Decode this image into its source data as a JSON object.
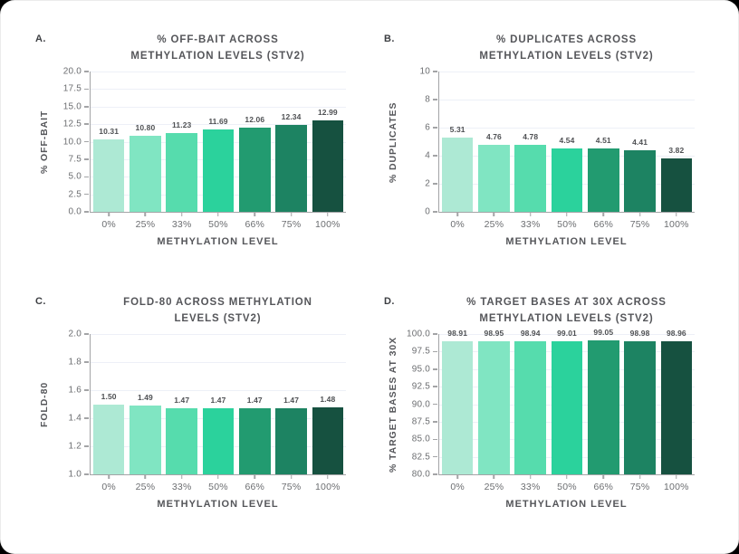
{
  "canvas": {
    "background": "#000000",
    "card_background": "#ffffff",
    "card_border": "rgba(0,0,0,0.08)"
  },
  "style": {
    "axis_line_color": "#a3a4a6",
    "grid_color": "#edf0f7",
    "title_color": "#55565a",
    "tick_color": "#6c6e71",
    "value_color": "#4e5053",
    "panel_label_color": "#3c3e42"
  },
  "palette": [
    "#ade9d4",
    "#80e5c2",
    "#56dcad",
    "#2bd29c",
    "#229b70",
    "#1d8362",
    "#165140"
  ],
  "chart_data": [
    {
      "type": "bar",
      "panel_label": "A.",
      "title": "% OFF-BAIT ACROSS METHYLATION LEVELS (STV2)",
      "title_lines": [
        "% OFF-BAIT ACROSS",
        "METHYLATION LEVELS (STV2)"
      ],
      "ylabel": "% OFF-BAIT",
      "xlabel": "METHYLATION LEVEL",
      "categories": [
        "0%",
        "25%",
        "33%",
        "50%",
        "66%",
        "75%",
        "100%"
      ],
      "values": [
        10.31,
        10.8,
        11.23,
        11.69,
        12.06,
        12.34,
        12.99
      ],
      "value_labels": [
        "10.31",
        "10.80",
        "11.23",
        "11.69",
        "12.06",
        "12.34",
        "12.99"
      ],
      "ylim": [
        0,
        20
      ],
      "yticks": [
        0,
        2.5,
        5,
        7.5,
        10,
        12.5,
        15,
        17.5,
        20
      ],
      "ytick_labels": [
        "0.0",
        "2.5",
        "5.0",
        "7.5",
        "10.0",
        "12.5",
        "15.0",
        "17.5",
        "20.0"
      ],
      "grid": true,
      "legend": null
    },
    {
      "type": "bar",
      "panel_label": "B.",
      "title": "% DUPLICATES ACROSS METHYLATION LEVELS (STV2)",
      "title_lines": [
        "% DUPLICATES ACROSS",
        "METHYLATION LEVELS (STV2)"
      ],
      "ylabel": "% DUPLICATES",
      "xlabel": "METHYLATION LEVEL",
      "categories": [
        "0%",
        "25%",
        "33%",
        "50%",
        "66%",
        "75%",
        "100%"
      ],
      "values": [
        5.31,
        4.76,
        4.78,
        4.54,
        4.51,
        4.41,
        3.82
      ],
      "value_labels": [
        "5.31",
        "4.76",
        "4.78",
        "4.54",
        "4.51",
        "4.41",
        "3.82"
      ],
      "ylim": [
        0,
        10
      ],
      "yticks": [
        0,
        2,
        4,
        6,
        8,
        10
      ],
      "ytick_labels": [
        "0",
        "2",
        "4",
        "6",
        "8",
        "10"
      ],
      "grid": true,
      "legend": null
    },
    {
      "type": "bar",
      "panel_label": "C.",
      "title": "FOLD-80 ACROSS METHYLATION LEVELS (STV2)",
      "title_lines": [
        "FOLD-80 ACROSS METHYLATION",
        "LEVELS (STV2)"
      ],
      "ylabel": "FOLD-80",
      "xlabel": "METHYLATION LEVEL",
      "categories": [
        "0%",
        "25%",
        "33%",
        "50%",
        "66%",
        "75%",
        "100%"
      ],
      "values": [
        1.5,
        1.49,
        1.47,
        1.47,
        1.47,
        1.47,
        1.48
      ],
      "value_labels": [
        "1.50",
        "1.49",
        "1.47",
        "1.47",
        "1.47",
        "1.47",
        "1.48"
      ],
      "ylim": [
        1.0,
        2.0
      ],
      "yticks": [
        1.0,
        1.2,
        1.4,
        1.6,
        1.8,
        2.0
      ],
      "ytick_labels": [
        "1.0",
        "1.2",
        "1.4",
        "1.6",
        "1.8",
        "2.0"
      ],
      "grid": true,
      "legend": null
    },
    {
      "type": "bar",
      "panel_label": "D.",
      "title": "% TARGET BASES AT 30X ACROSS METHYLATION LEVELS (STV2)",
      "title_lines": [
        "% TARGET BASES AT 30X ACROSS",
        "METHYLATION LEVELS (STV2)"
      ],
      "ylabel": "% TARGET BASES AT 30X",
      "xlabel": "METHYLATION LEVEL",
      "categories": [
        "0%",
        "25%",
        "33%",
        "50%",
        "66%",
        "75%",
        "100%"
      ],
      "values": [
        98.91,
        98.95,
        98.94,
        99.01,
        99.05,
        98.98,
        98.96
      ],
      "value_labels": [
        "98.91",
        "98.95",
        "98.94",
        "99.01",
        "99.05",
        "98.98",
        "98.96"
      ],
      "ylim": [
        80,
        100
      ],
      "yticks": [
        80,
        82.5,
        85,
        87.5,
        90,
        92.5,
        95,
        97.5,
        100
      ],
      "ytick_labels": [
        "80.0",
        "82.5",
        "85.0",
        "87.5",
        "90.0",
        "92.5",
        "95.0",
        "97.5",
        "100.0"
      ],
      "grid": true,
      "legend": null
    }
  ]
}
